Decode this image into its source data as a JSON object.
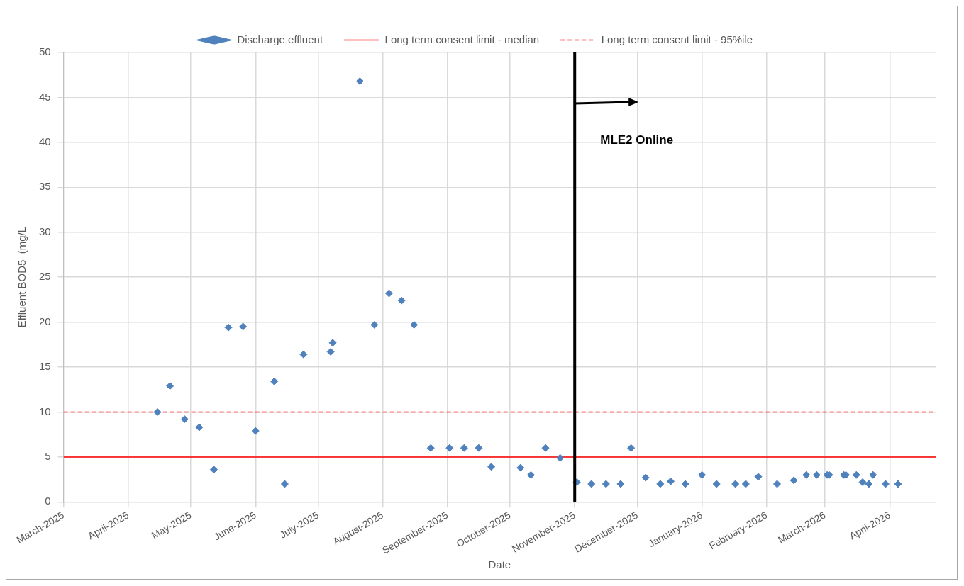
{
  "chart_data": {
    "type": "scatter",
    "xlabel": "Date",
    "ylabel": "Effluent BOD5  (mg/L",
    "x": [
      "2025-04-15",
      "2025-04-21",
      "2025-04-28",
      "2025-05-05",
      "2025-05-12",
      "2025-05-19",
      "2025-05-26",
      "2025-06-01",
      "2025-06-10",
      "2025-06-15",
      "2025-06-24",
      "2025-07-07",
      "2025-07-08",
      "2025-07-21",
      "2025-07-28",
      "2025-08-04",
      "2025-08-10",
      "2025-08-16",
      "2025-08-24",
      "2025-09-02",
      "2025-09-09",
      "2025-09-16",
      "2025-09-22",
      "2025-10-06",
      "2025-10-11",
      "2025-10-18",
      "2025-10-25",
      "2025-11-02",
      "2025-11-09",
      "2025-11-16",
      "2025-11-23",
      "2025-11-28",
      "2025-12-05",
      "2025-12-12",
      "2025-12-17",
      "2025-12-24",
      "2026-01-01",
      "2026-01-08",
      "2026-01-17",
      "2026-01-22",
      "2026-01-28",
      "2026-02-06",
      "2026-02-14",
      "2026-02-20",
      "2026-02-25",
      "2026-03-02",
      "2026-03-03",
      "2026-03-10",
      "2026-03-11",
      "2026-03-16",
      "2026-03-19",
      "2026-03-22",
      "2026-03-24",
      "2026-03-30",
      "2026-04-05"
    ],
    "series": [
      {
        "name": "Discharge effluent",
        "color": "#4f81bd",
        "marker": "diamond",
        "values": [
          10,
          12.9,
          9.2,
          8.3,
          3.6,
          19.4,
          19.5,
          7.9,
          13.4,
          2,
          16.4,
          16.7,
          17.7,
          46.8,
          19.7,
          23.2,
          22.4,
          19.7,
          6,
          6,
          6,
          6,
          3.9,
          3.8,
          3,
          6,
          4.9,
          2.2,
          2,
          2,
          2,
          6,
          2.7,
          2,
          2.3,
          2,
          3,
          2,
          2,
          2,
          2.8,
          2,
          2.4,
          3,
          3,
          3,
          3,
          3,
          3,
          3,
          2.2,
          2,
          3,
          2,
          2
        ]
      },
      {
        "name": "Long term consent limit - median",
        "type": "line",
        "color": "#ff0000",
        "line_style": "solid",
        "marker": "none",
        "x": [
          "2025-03-01",
          "2026-04-23"
        ],
        "values": [
          5,
          5
        ]
      },
      {
        "name": "Long term consent limit - 95%ile",
        "type": "line",
        "color": "#ff0000",
        "line_style": "dashed",
        "marker": "none",
        "x": [
          "2025-03-01",
          "2026-04-23"
        ],
        "values": [
          10,
          10
        ]
      }
    ],
    "xlim": [
      "2025-03-01",
      "2026-04-23"
    ],
    "xticks": [
      {
        "value": "2025-03-01",
        "label": "March-2025"
      },
      {
        "value": "2025-04-01",
        "label": "April-2025"
      },
      {
        "value": "2025-05-01",
        "label": "May-2025"
      },
      {
        "value": "2025-06-01",
        "label": "June-2025"
      },
      {
        "value": "2025-07-01",
        "label": "July-2025"
      },
      {
        "value": "2025-08-01",
        "label": "August-2025"
      },
      {
        "value": "2025-09-01",
        "label": "September-2025"
      },
      {
        "value": "2025-10-01",
        "label": "October-2025"
      },
      {
        "value": "2025-11-01",
        "label": "November-2025"
      },
      {
        "value": "2025-12-01",
        "label": "December-2025"
      },
      {
        "value": "2026-01-01",
        "label": "January-2026"
      },
      {
        "value": "2026-02-01",
        "label": "February-2026"
      },
      {
        "value": "2026-03-01",
        "label": "March-2026"
      },
      {
        "value": "2026-04-01",
        "label": "April-2026"
      }
    ],
    "ylim": [
      0,
      50
    ],
    "yticks": [
      0,
      5,
      10,
      15,
      20,
      25,
      30,
      35,
      40,
      45,
      50
    ],
    "ref_lines": [
      {
        "axis": "x",
        "value": "2025-11-01",
        "label": "MLE2 Online",
        "color": "#000000"
      }
    ],
    "grid": true,
    "legend": "top"
  }
}
